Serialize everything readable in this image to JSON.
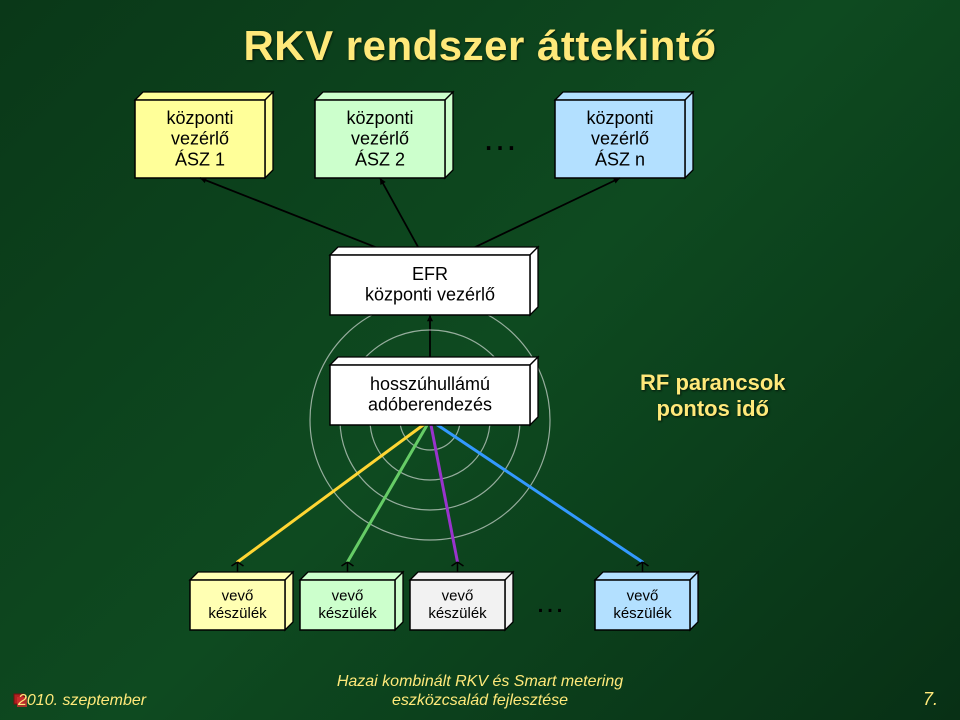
{
  "title": "RKV rendszer áttekintő",
  "title_fontsize": 42,
  "title_color": "#ffe97a",
  "background_colors": [
    "#0a3818",
    "#0e4a20",
    "#083015"
  ],
  "top_boxes": [
    {
      "lines": [
        "központi",
        "vezérlő",
        "ÁSZ 1"
      ],
      "fill": "#ffff99"
    },
    {
      "lines": [
        "központi",
        "vezérlő",
        "ÁSZ 2"
      ],
      "fill": "#ccffcc"
    },
    {
      "lines": [
        "központi",
        "vezérlő",
        "ÁSZ n"
      ],
      "fill": "#b3e0ff"
    }
  ],
  "top_ellipsis": "…",
  "middle_boxes": [
    {
      "lines": [
        "EFR",
        "központi vezérlő"
      ],
      "fill": "#ffffff"
    },
    {
      "lines": [
        "hosszúhullámú",
        "adóberendezés"
      ],
      "fill": "#ffffff"
    }
  ],
  "side_label": {
    "lines": [
      "RF parancsok",
      "pontos idő"
    ],
    "color": "#ffe97a",
    "fontsize": 22
  },
  "bottom_boxes": [
    {
      "lines": [
        "vevő",
        "készülék"
      ],
      "fill": "#ffffb3"
    },
    {
      "lines": [
        "vevő",
        "készülék"
      ],
      "fill": "#ccffcc"
    },
    {
      "lines": [
        "vevő",
        "készülék"
      ],
      "fill": "#f2f2f2"
    },
    {
      "lines": [
        "vevő",
        "készülék"
      ],
      "fill": "#b3e0ff"
    }
  ],
  "bottom_ellipsis": "…",
  "rays": {
    "colors": [
      "#ffd633",
      "#66cc66",
      "#9933cc",
      "#3399ff"
    ],
    "circles_color": "#f2f2f2"
  },
  "box_style": {
    "stroke": "#000000",
    "stroke_width": 1.5,
    "depth": 8,
    "text_color": "#000000",
    "fontsize": 18,
    "fontsize_small": 15
  },
  "footer": {
    "date": "2010. szeptember",
    "mid_line1": "Hazai kombinált RKV és Smart metering",
    "mid_line2": "eszközcsalád fejlesztése",
    "page": "7.",
    "color": "#ffe97a",
    "fontsize": 16
  }
}
